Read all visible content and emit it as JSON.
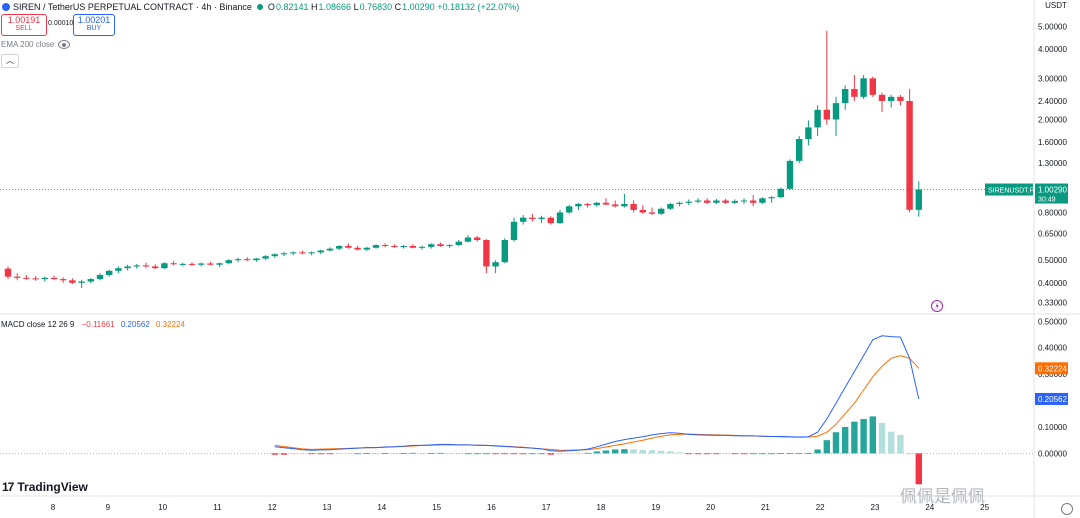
{
  "header": {
    "title": "SIREN / TetherUS PERPETUAL CONTRACT · 4h · Binance",
    "ohlc": {
      "o_label": "O",
      "o": "0.82141",
      "h_label": "H",
      "h": "1.08666",
      "l_label": "L",
      "l": "0.76830",
      "c_label": "C",
      "c": "1.00290",
      "change": "+0.18132 (+22.07%)"
    }
  },
  "order": {
    "sell_price": "1.00191",
    "sell_label": "SELL",
    "spread": "0.00010",
    "buy_price": "1.00201",
    "buy_label": "BUY"
  },
  "indicator_ema": {
    "label": "EMA 200 close"
  },
  "macd_legend": {
    "label": "MACD close 12 26 9",
    "hist": "−0.11661",
    "macd": "0.20562",
    "signal": "0.32224"
  },
  "currency": "USDT",
  "symbol_tag": {
    "name": "SIRENUSDT.P",
    "price": "1.00290",
    "countdown": "30:49"
  },
  "logo_text": "TradingView",
  "watermark": "佩佩是佩佩",
  "colors": {
    "up": "#089981",
    "down": "#f23645",
    "macd": "#2962ff",
    "signal": "#ff6d00",
    "hist_up": "#26a69a",
    "hist_up_light": "#b2dfdb",
    "hist_down": "#f23645",
    "hist_down_light": "#ffcdd2"
  },
  "chart_data": {
    "type": "candlestick",
    "price_axis": {
      "scale": "log",
      "labels": [
        "5.00000",
        "4.00000",
        "3.00000",
        "2.40000",
        "2.00000",
        "1.60000",
        "1.30000",
        "1.00000",
        "0.80000",
        "0.65000",
        "0.50000",
        "0.40000",
        "0.33000"
      ]
    },
    "macd_axis": {
      "labels": [
        "0.50000",
        "0.40000",
        "0.30000",
        "0.20000",
        "0.10000",
        "0.00000"
      ]
    },
    "x_ticks": [
      "8",
      "9",
      "10",
      "11",
      "12",
      "13",
      "14",
      "15",
      "16",
      "17",
      "18",
      "19",
      "20",
      "21",
      "22",
      "23",
      "24",
      "25"
    ],
    "candles": [
      [
        0.46,
        0.47,
        0.415,
        0.425
      ],
      [
        0.425,
        0.44,
        0.41,
        0.42
      ],
      [
        0.42,
        0.432,
        0.412,
        0.418
      ],
      [
        0.418,
        0.428,
        0.408,
        0.415
      ],
      [
        0.415,
        0.425,
        0.405,
        0.42
      ],
      [
        0.42,
        0.43,
        0.41,
        0.415
      ],
      [
        0.415,
        0.422,
        0.4,
        0.41
      ],
      [
        0.41,
        0.418,
        0.395,
        0.4
      ],
      [
        0.4,
        0.412,
        0.38,
        0.405
      ],
      [
        0.405,
        0.42,
        0.398,
        0.415
      ],
      [
        0.415,
        0.44,
        0.41,
        0.432
      ],
      [
        0.432,
        0.455,
        0.425,
        0.45
      ],
      [
        0.45,
        0.47,
        0.44,
        0.462
      ],
      [
        0.462,
        0.478,
        0.452,
        0.47
      ],
      [
        0.47,
        0.482,
        0.46,
        0.475
      ],
      [
        0.475,
        0.488,
        0.462,
        0.47
      ],
      [
        0.47,
        0.48,
        0.458,
        0.462
      ],
      [
        0.462,
        0.49,
        0.458,
        0.485
      ],
      [
        0.485,
        0.495,
        0.475,
        0.48
      ],
      [
        0.48,
        0.488,
        0.47,
        0.482
      ],
      [
        0.482,
        0.49,
        0.472,
        0.478
      ],
      [
        0.478,
        0.488,
        0.47,
        0.484
      ],
      [
        0.484,
        0.492,
        0.475,
        0.478
      ],
      [
        0.478,
        0.488,
        0.468,
        0.485
      ],
      [
        0.485,
        0.505,
        0.48,
        0.5
      ],
      [
        0.5,
        0.512,
        0.49,
        0.505
      ],
      [
        0.505,
        0.515,
        0.495,
        0.5
      ],
      [
        0.5,
        0.512,
        0.492,
        0.508
      ],
      [
        0.508,
        0.525,
        0.5,
        0.52
      ],
      [
        0.52,
        0.535,
        0.512,
        0.53
      ],
      [
        0.53,
        0.542,
        0.52,
        0.535
      ],
      [
        0.535,
        0.545,
        0.525,
        0.54
      ],
      [
        0.54,
        0.55,
        0.53,
        0.535
      ],
      [
        0.535,
        0.545,
        0.525,
        0.54
      ],
      [
        0.54,
        0.555,
        0.53,
        0.55
      ],
      [
        0.55,
        0.568,
        0.545,
        0.56
      ],
      [
        0.56,
        0.58,
        0.552,
        0.575
      ],
      [
        0.575,
        0.59,
        0.56,
        0.565
      ],
      [
        0.565,
        0.575,
        0.55,
        0.555
      ],
      [
        0.555,
        0.57,
        0.548,
        0.565
      ],
      [
        0.565,
        0.585,
        0.56,
        0.58
      ],
      [
        0.58,
        0.59,
        0.568,
        0.575
      ],
      [
        0.575,
        0.585,
        0.565,
        0.57
      ],
      [
        0.57,
        0.58,
        0.56,
        0.575
      ],
      [
        0.575,
        0.585,
        0.562,
        0.565
      ],
      [
        0.565,
        0.578,
        0.555,
        0.57
      ],
      [
        0.57,
        0.59,
        0.56,
        0.585
      ],
      [
        0.585,
        0.595,
        0.57,
        0.575
      ],
      [
        0.575,
        0.585,
        0.565,
        0.58
      ],
      [
        0.58,
        0.61,
        0.575,
        0.6
      ],
      [
        0.6,
        0.64,
        0.595,
        0.625
      ],
      [
        0.625,
        0.635,
        0.6,
        0.61
      ],
      [
        0.61,
        0.615,
        0.44,
        0.47
      ],
      [
        0.47,
        0.5,
        0.44,
        0.49
      ],
      [
        0.49,
        0.62,
        0.485,
        0.61
      ],
      [
        0.61,
        0.76,
        0.6,
        0.73
      ],
      [
        0.73,
        0.78,
        0.71,
        0.76
      ],
      [
        0.76,
        0.79,
        0.73,
        0.75
      ],
      [
        0.75,
        0.775,
        0.72,
        0.76
      ],
      [
        0.76,
        0.77,
        0.71,
        0.72
      ],
      [
        0.72,
        0.82,
        0.715,
        0.8
      ],
      [
        0.8,
        0.86,
        0.79,
        0.85
      ],
      [
        0.85,
        0.88,
        0.82,
        0.87
      ],
      [
        0.87,
        0.88,
        0.84,
        0.86
      ],
      [
        0.86,
        0.89,
        0.845,
        0.88
      ],
      [
        0.88,
        0.92,
        0.86,
        0.865
      ],
      [
        0.865,
        0.9,
        0.84,
        0.85
      ],
      [
        0.85,
        0.96,
        0.84,
        0.87
      ],
      [
        0.87,
        0.9,
        0.8,
        0.82
      ],
      [
        0.82,
        0.86,
        0.79,
        0.8
      ],
      [
        0.8,
        0.84,
        0.78,
        0.79
      ],
      [
        0.79,
        0.84,
        0.78,
        0.83
      ],
      [
        0.83,
        0.88,
        0.82,
        0.87
      ],
      [
        0.87,
        0.89,
        0.85,
        0.88
      ],
      [
        0.88,
        0.91,
        0.86,
        0.89
      ],
      [
        0.89,
        0.92,
        0.875,
        0.9
      ],
      [
        0.9,
        0.92,
        0.87,
        0.88
      ],
      [
        0.88,
        0.915,
        0.87,
        0.9
      ],
      [
        0.9,
        0.915,
        0.87,
        0.88
      ],
      [
        0.88,
        0.91,
        0.87,
        0.895
      ],
      [
        0.895,
        0.92,
        0.87,
        0.9
      ],
      [
        0.9,
        0.95,
        0.85,
        0.88
      ],
      [
        0.88,
        0.93,
        0.87,
        0.92
      ],
      [
        0.92,
        0.94,
        0.88,
        0.93
      ],
      [
        0.93,
        1.02,
        0.92,
        1.01
      ],
      [
        1.01,
        1.35,
        1.0,
        1.33
      ],
      [
        1.33,
        1.7,
        1.3,
        1.65
      ],
      [
        1.65,
        1.98,
        1.55,
        1.85
      ],
      [
        1.85,
        2.3,
        1.7,
        2.2
      ],
      [
        2.2,
        4.8,
        1.9,
        2.0
      ],
      [
        2.0,
        2.5,
        1.7,
        2.35
      ],
      [
        2.35,
        2.8,
        2.2,
        2.7
      ],
      [
        2.7,
        3.1,
        2.4,
        2.5
      ],
      [
        2.5,
        3.1,
        2.45,
        3.0
      ],
      [
        3.0,
        3.05,
        2.5,
        2.55
      ],
      [
        2.55,
        2.6,
        2.15,
        2.4
      ],
      [
        2.4,
        2.55,
        2.25,
        2.5
      ],
      [
        2.5,
        2.55,
        2.3,
        2.4
      ],
      [
        2.4,
        2.7,
        0.8,
        0.821
      ],
      [
        0.821,
        1.087,
        0.768,
        1.003
      ]
    ],
    "macd_line": [
      0.025,
      0.021,
      0.018,
      0.014,
      0.012,
      0.013,
      0.014,
      0.016,
      0.018,
      0.02,
      0.022,
      0.022,
      0.024,
      0.025,
      0.027,
      0.03,
      0.03,
      0.032,
      0.034,
      0.034,
      0.032,
      0.032,
      0.031,
      0.03,
      0.028,
      0.026,
      0.024,
      0.022,
      0.02,
      0.017,
      0.01,
      0.008,
      0.01,
      0.012,
      0.016,
      0.025,
      0.035,
      0.045,
      0.052,
      0.058,
      0.063,
      0.07,
      0.075,
      0.078,
      0.076,
      0.072,
      0.07,
      0.069,
      0.068,
      0.068,
      0.067,
      0.066,
      0.066,
      0.065,
      0.064,
      0.064,
      0.063,
      0.062,
      0.063,
      0.08,
      0.13,
      0.19,
      0.25,
      0.31,
      0.37,
      0.43,
      0.445,
      0.442,
      0.44,
      0.36,
      0.206
    ],
    "signal_line": [
      0.03,
      0.026,
      0.021,
      0.017,
      0.015,
      0.016,
      0.017,
      0.018,
      0.019,
      0.02,
      0.021,
      0.022,
      0.023,
      0.025,
      0.026,
      0.028,
      0.03,
      0.031,
      0.032,
      0.033,
      0.032,
      0.032,
      0.031,
      0.03,
      0.029,
      0.027,
      0.025,
      0.023,
      0.02,
      0.017,
      0.015,
      0.012,
      0.012,
      0.013,
      0.014,
      0.018,
      0.024,
      0.03,
      0.036,
      0.043,
      0.05,
      0.058,
      0.065,
      0.07,
      0.072,
      0.073,
      0.072,
      0.071,
      0.07,
      0.069,
      0.068,
      0.067,
      0.066,
      0.065,
      0.064,
      0.063,
      0.062,
      0.061,
      0.062,
      0.065,
      0.08,
      0.11,
      0.15,
      0.19,
      0.24,
      0.29,
      0.33,
      0.36,
      0.37,
      0.36,
      0.322
    ],
    "hist": [
      -0.005,
      -0.005,
      -0.004,
      -0.003,
      -0.003,
      -0.003,
      -0.003,
      -0.002,
      -0.001,
      0.0,
      0.001,
      0.0,
      0.001,
      0.0,
      0.001,
      0.002,
      0.0,
      0.001,
      0.002,
      0.001,
      0.0,
      0.0,
      0.0,
      0.0,
      -0.001,
      -0.001,
      -0.001,
      -0.001,
      0.0,
      0.0,
      -0.005,
      -0.004,
      -0.002,
      -0.001,
      0.002,
      0.007,
      0.011,
      0.015,
      0.016,
      0.015,
      0.013,
      0.012,
      0.01,
      0.008,
      0.004,
      -0.001,
      -0.002,
      -0.002,
      -0.002,
      -0.001,
      -0.001,
      -0.001,
      0.0,
      0.0,
      0.0,
      0.001,
      0.001,
      0.001,
      0.001,
      0.015,
      0.05,
      0.08,
      0.1,
      0.12,
      0.13,
      0.14,
      0.115,
      0.082,
      0.07,
      0.0,
      -0.117
    ]
  }
}
